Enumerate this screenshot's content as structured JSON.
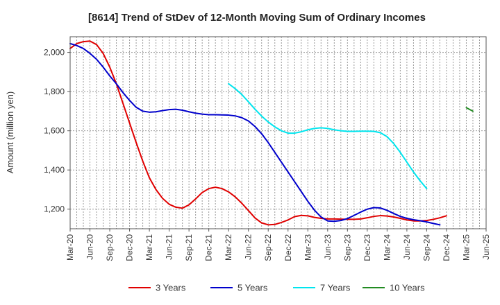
{
  "chart_data": {
    "type": "line",
    "title": "[8614]  Trend of StDev of 12-Month Moving Sum of Ordinary Incomes",
    "xlabel": "",
    "ylabel": "Amount (million yen)",
    "ylim": [
      1100,
      2080
    ],
    "yticks": [
      1200,
      1400,
      1600,
      1800,
      2000
    ],
    "ytick_labels": [
      "1,200",
      "1,400",
      "1,600",
      "1,800",
      "2,000"
    ],
    "x_start": "Mar-20",
    "x_ticks": [
      "Mar-20",
      "Jun-20",
      "Sep-20",
      "Dec-20",
      "Mar-21",
      "Jun-21",
      "Sep-21",
      "Dec-21",
      "Mar-22",
      "Jun-22",
      "Sep-22",
      "Dec-22",
      "Mar-23",
      "Jun-23",
      "Sep-23",
      "Dec-23",
      "Mar-24",
      "Jun-24",
      "Sep-24",
      "Dec-24",
      "Mar-25",
      "Jun-25"
    ],
    "grid": true,
    "legend_position": "bottom",
    "series": [
      {
        "name": "3 Years",
        "color": "#e00000",
        "start_index": 0,
        "values": [
          2020,
          2045,
          2055,
          2058,
          2040,
          1995,
          1925,
          1840,
          1740,
          1640,
          1540,
          1445,
          1360,
          1300,
          1255,
          1225,
          1210,
          1205,
          1222,
          1252,
          1285,
          1305,
          1312,
          1305,
          1288,
          1263,
          1230,
          1193,
          1155,
          1130,
          1120,
          1122,
          1132,
          1145,
          1162,
          1168,
          1166,
          1158,
          1153,
          1150,
          1150,
          1149,
          1148,
          1148,
          1150,
          1156,
          1163,
          1167,
          1165,
          1160,
          1153,
          1145,
          1140,
          1140,
          1142,
          1148,
          1156,
          1166
        ]
      },
      {
        "name": "5 Years",
        "color": "#0000cc",
        "start_index": 0,
        "values": [
          2045,
          2035,
          2020,
          1995,
          1965,
          1925,
          1880,
          1840,
          1795,
          1755,
          1720,
          1700,
          1695,
          1697,
          1703,
          1708,
          1710,
          1705,
          1697,
          1690,
          1685,
          1682,
          1682,
          1681,
          1680,
          1676,
          1667,
          1650,
          1622,
          1585,
          1540,
          1490,
          1440,
          1390,
          1340,
          1290,
          1240,
          1195,
          1160,
          1140,
          1138,
          1142,
          1152,
          1168,
          1185,
          1200,
          1208,
          1206,
          1194,
          1178,
          1163,
          1153,
          1146,
          1141,
          1135,
          1127,
          1120
        ]
      },
      {
        "name": "7 Years",
        "color": "#00e5ee",
        "start_index": 24,
        "values": [
          1840,
          1815,
          1785,
          1748,
          1710,
          1675,
          1645,
          1620,
          1600,
          1588,
          1588,
          1595,
          1605,
          1612,
          1615,
          1612,
          1605,
          1600,
          1597,
          1597,
          1598,
          1598,
          1597,
          1590,
          1570,
          1535,
          1490,
          1440,
          1390,
          1345,
          1305
        ]
      },
      {
        "name": "10 Years",
        "color": "#228b22",
        "start_index": 60,
        "values": [
          1718,
          1700
        ]
      }
    ]
  }
}
